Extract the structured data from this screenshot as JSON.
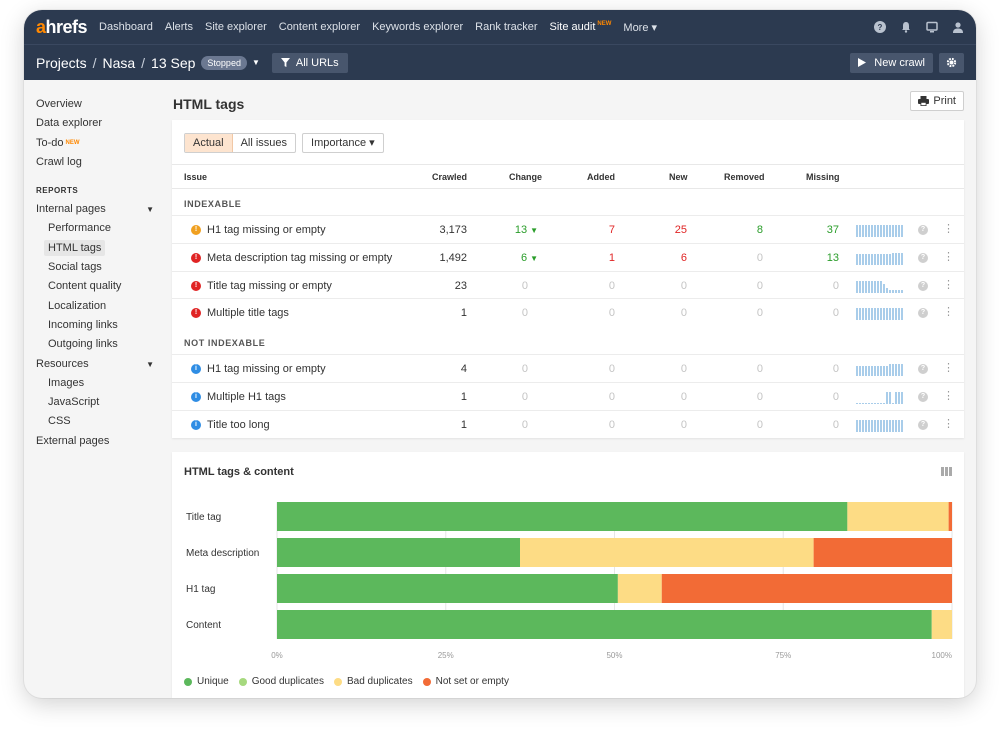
{
  "topnav": {
    "logo_a": "a",
    "logo_rest": "hrefs",
    "items": [
      "Dashboard",
      "Alerts",
      "Site explorer",
      "Content explorer",
      "Keywords explorer",
      "Rank tracker",
      "Site audit",
      "More ▾"
    ],
    "new_label": "NEW",
    "accent_color": "#ff8800",
    "icons": [
      "help-icon",
      "bell-icon",
      "monitor-icon",
      "user-icon"
    ]
  },
  "projbar": {
    "crumbs": [
      "Projects",
      "Nasa",
      "13 Sep"
    ],
    "sep": "/",
    "status": "Stopped",
    "filter_label": "All URLs",
    "new_crawl_label": "New crawl"
  },
  "sidebar": {
    "top_items": [
      "Overview",
      "Data explorer",
      "To-do",
      "Crawl log"
    ],
    "todo_new": "NEW",
    "reports_head": "REPORTS",
    "internal_pages": "Internal pages",
    "internal_sub": [
      "Performance",
      "HTML tags",
      "Social tags",
      "Content quality",
      "Localization",
      "Incoming links",
      "Outgoing links"
    ],
    "resources": "Resources",
    "resources_sub": [
      "Images",
      "JavaScript",
      "CSS"
    ],
    "external": "External pages"
  },
  "main": {
    "title": "HTML tags",
    "print_label": "Print"
  },
  "filters": {
    "actual": "Actual",
    "all_issues": "All issues",
    "importance": "Importance ▾"
  },
  "table": {
    "headers": [
      "Issue",
      "Crawled",
      "Change",
      "Added",
      "New",
      "Removed",
      "Missing"
    ],
    "group1": "INDEXABLE",
    "group2": "NOT INDEXABLE",
    "rows": [
      {
        "issue": "H1 tag missing or empty",
        "level": "warn",
        "crawled": "3,173",
        "change": "13",
        "added": "7",
        "new": "25",
        "removed": "8",
        "missing": "37",
        "spark": [
          12,
          12,
          12,
          12,
          12,
          12,
          12,
          12,
          12,
          12,
          12,
          12,
          12,
          12,
          12,
          12
        ]
      },
      {
        "issue": "Meta description tag missing or empty",
        "level": "err",
        "crawled": "1,492",
        "change": "6",
        "added": "1",
        "new": "6",
        "removed": "0",
        "missing": "13",
        "spark": [
          11,
          11,
          11,
          11,
          11,
          11,
          11,
          11,
          11,
          11,
          11,
          11,
          12,
          12,
          12,
          12
        ]
      },
      {
        "issue": "Title tag missing or empty",
        "level": "err",
        "crawled": "23",
        "change": "0",
        "added": "0",
        "new": "0",
        "removed": "0",
        "missing": "0",
        "spark": [
          12,
          12,
          12,
          12,
          12,
          12,
          12,
          12,
          12,
          9,
          5,
          3,
          3,
          3,
          3,
          3
        ]
      },
      {
        "issue": "Multiple title tags",
        "level": "err",
        "crawled": "1",
        "change": "0",
        "added": "0",
        "new": "0",
        "removed": "0",
        "missing": "0",
        "spark": [
          12,
          12,
          12,
          12,
          12,
          12,
          12,
          12,
          12,
          12,
          12,
          12,
          12,
          12,
          12,
          12
        ]
      },
      {
        "issue": "H1 tag missing or empty",
        "level": "info",
        "crawled": "4",
        "change": "0",
        "added": "0",
        "new": "0",
        "removed": "0",
        "missing": "0",
        "spark": [
          10,
          10,
          10,
          10,
          10,
          10,
          10,
          10,
          10,
          10,
          10,
          12,
          12,
          12,
          12,
          12
        ]
      },
      {
        "issue": "Multiple H1 tags",
        "level": "info",
        "crawled": "1",
        "change": "0",
        "added": "0",
        "new": "0",
        "removed": "0",
        "missing": "0",
        "spark": [
          1,
          1,
          1,
          1,
          1,
          1,
          1,
          1,
          1,
          1,
          12,
          12,
          1,
          12,
          12,
          12
        ]
      },
      {
        "issue": "Title too long",
        "level": "info",
        "crawled": "1",
        "change": "0",
        "added": "0",
        "new": "0",
        "removed": "0",
        "missing": "0",
        "spark": [
          12,
          12,
          12,
          12,
          12,
          12,
          12,
          12,
          12,
          12,
          12,
          12,
          12,
          12,
          12,
          12
        ]
      }
    ]
  },
  "chart_data": {
    "type": "bar",
    "title": "HTML tags & content",
    "orientation": "horizontal-stacked",
    "categories": [
      "Title tag",
      "Meta description",
      "H1 tag",
      "Content"
    ],
    "series": [
      {
        "name": "Unique",
        "color": "#5cb85c",
        "values": [
          84.5,
          36,
          50.5,
          97
        ]
      },
      {
        "name": "Good duplicates",
        "color": "#a6d97e",
        "values": [
          0,
          0,
          0,
          0
        ]
      },
      {
        "name": "Bad duplicates",
        "color": "#fddc85",
        "values": [
          15,
          43.5,
          6.5,
          3
        ]
      },
      {
        "name": "Not set or empty",
        "color": "#f26b36",
        "values": [
          0.5,
          20.5,
          43,
          0
        ]
      }
    ],
    "xticks": [
      "0%",
      "25%",
      "50%",
      "75%",
      "100%"
    ],
    "xlim": [
      0,
      100
    ],
    "grid": true,
    "legend_position": "bottom-left"
  }
}
